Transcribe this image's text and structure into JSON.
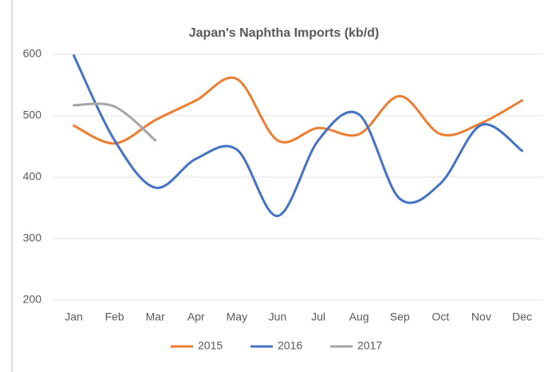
{
  "chart_data": {
    "type": "line",
    "title": "Japan's Naphtha Imports (kb/d)",
    "categories": [
      "Jan",
      "Feb",
      "Mar",
      "Apr",
      "May",
      "Jun",
      "Jul",
      "Aug",
      "Sep",
      "Oct",
      "Nov",
      "Dec"
    ],
    "series": [
      {
        "name": "2015",
        "color": "#ed7d31",
        "values": [
          484,
          455,
          493,
          525,
          560,
          460,
          480,
          470,
          532,
          470,
          488,
          525
        ]
      },
      {
        "name": "2016",
        "color": "#4472c4",
        "values": [
          598,
          460,
          383,
          430,
          445,
          337,
          460,
          502,
          365,
          390,
          485,
          443
        ]
      },
      {
        "name": "2017",
        "color": "#a5a5a5",
        "values": [
          517,
          515,
          460,
          null,
          null,
          null,
          null,
          null,
          null,
          null,
          null,
          null
        ]
      }
    ],
    "ylim": [
      200,
      600
    ],
    "yticks": [
      200,
      300,
      400,
      500,
      600
    ],
    "grid": true,
    "smooth": true,
    "legend": "bottom"
  }
}
